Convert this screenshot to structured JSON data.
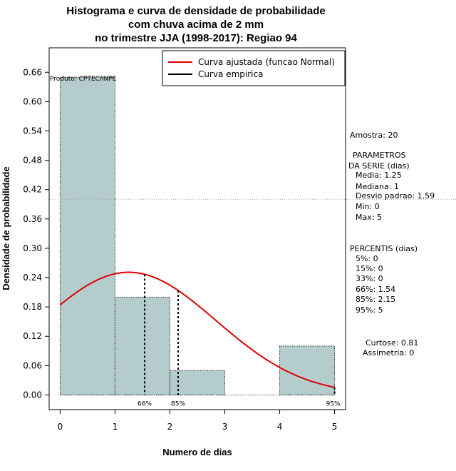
{
  "chart_data": {
    "type": "bar",
    "title": [
      "Histograma e curva de densidade de probabilidade",
      "com chuva acima de 2 mm",
      "no trimestre JJA (1998-2017): Regiao 94"
    ],
    "xlabel": "Numero de dias",
    "ylabel": "Densidade de probabilidade",
    "xlim": [
      -0.2,
      5.2
    ],
    "ylim": [
      -0.03,
      0.71
    ],
    "x_ticks": [
      "0",
      "1",
      "2",
      "3",
      "4",
      "5"
    ],
    "y_ticks": [
      "0.00",
      "0.06",
      "0.12",
      "0.18",
      "0.24",
      "0.30",
      "0.36",
      "0.42",
      "0.48",
      "0.54",
      "0.60",
      "0.66"
    ],
    "bins": [
      {
        "x0": 0,
        "x1": 1,
        "density": 0.65
      },
      {
        "x0": 1,
        "x1": 2,
        "density": 0.2
      },
      {
        "x0": 2,
        "x1": 3,
        "density": 0.05
      },
      {
        "x0": 3,
        "x1": 4,
        "density": 0.0
      },
      {
        "x0": 4,
        "x1": 5,
        "density": 0.1
      }
    ],
    "normal_fit": {
      "mean": 1.25,
      "sd": 1.59
    },
    "reference_line_y": 0.4,
    "percentile_markers": [
      {
        "label": "66%",
        "x": 1.54
      },
      {
        "label": "85%",
        "x": 2.15
      },
      {
        "label": "95%",
        "x": 5
      }
    ],
    "legend": {
      "position": "top-right",
      "entries": [
        {
          "label": "Curva ajustada (funcao Normal)",
          "color": "#e00000"
        },
        {
          "label": "Curva empirica",
          "color": "#000000"
        }
      ]
    },
    "colors": {
      "bar_fill": "#b4cccc",
      "curve": "#e00000"
    },
    "product_label": "Produto: CPTEC/INPE"
  },
  "side_panel": [
    "Amostra: 20",
    "PARAMETROS",
    "DA SERIE (dias)",
    "Media: 1.25",
    "Mediana: 1",
    "Desvio padrao: 1.59",
    "Min: 0",
    "Max: 5",
    "PERCENTIS (dias)",
    "5%: 0",
    "15%: 0",
    "33%: 0",
    "66%: 1.54",
    "85%: 2.15",
    "95%: 5",
    "Curtose: 0.81",
    "Assimetria: 0"
  ]
}
